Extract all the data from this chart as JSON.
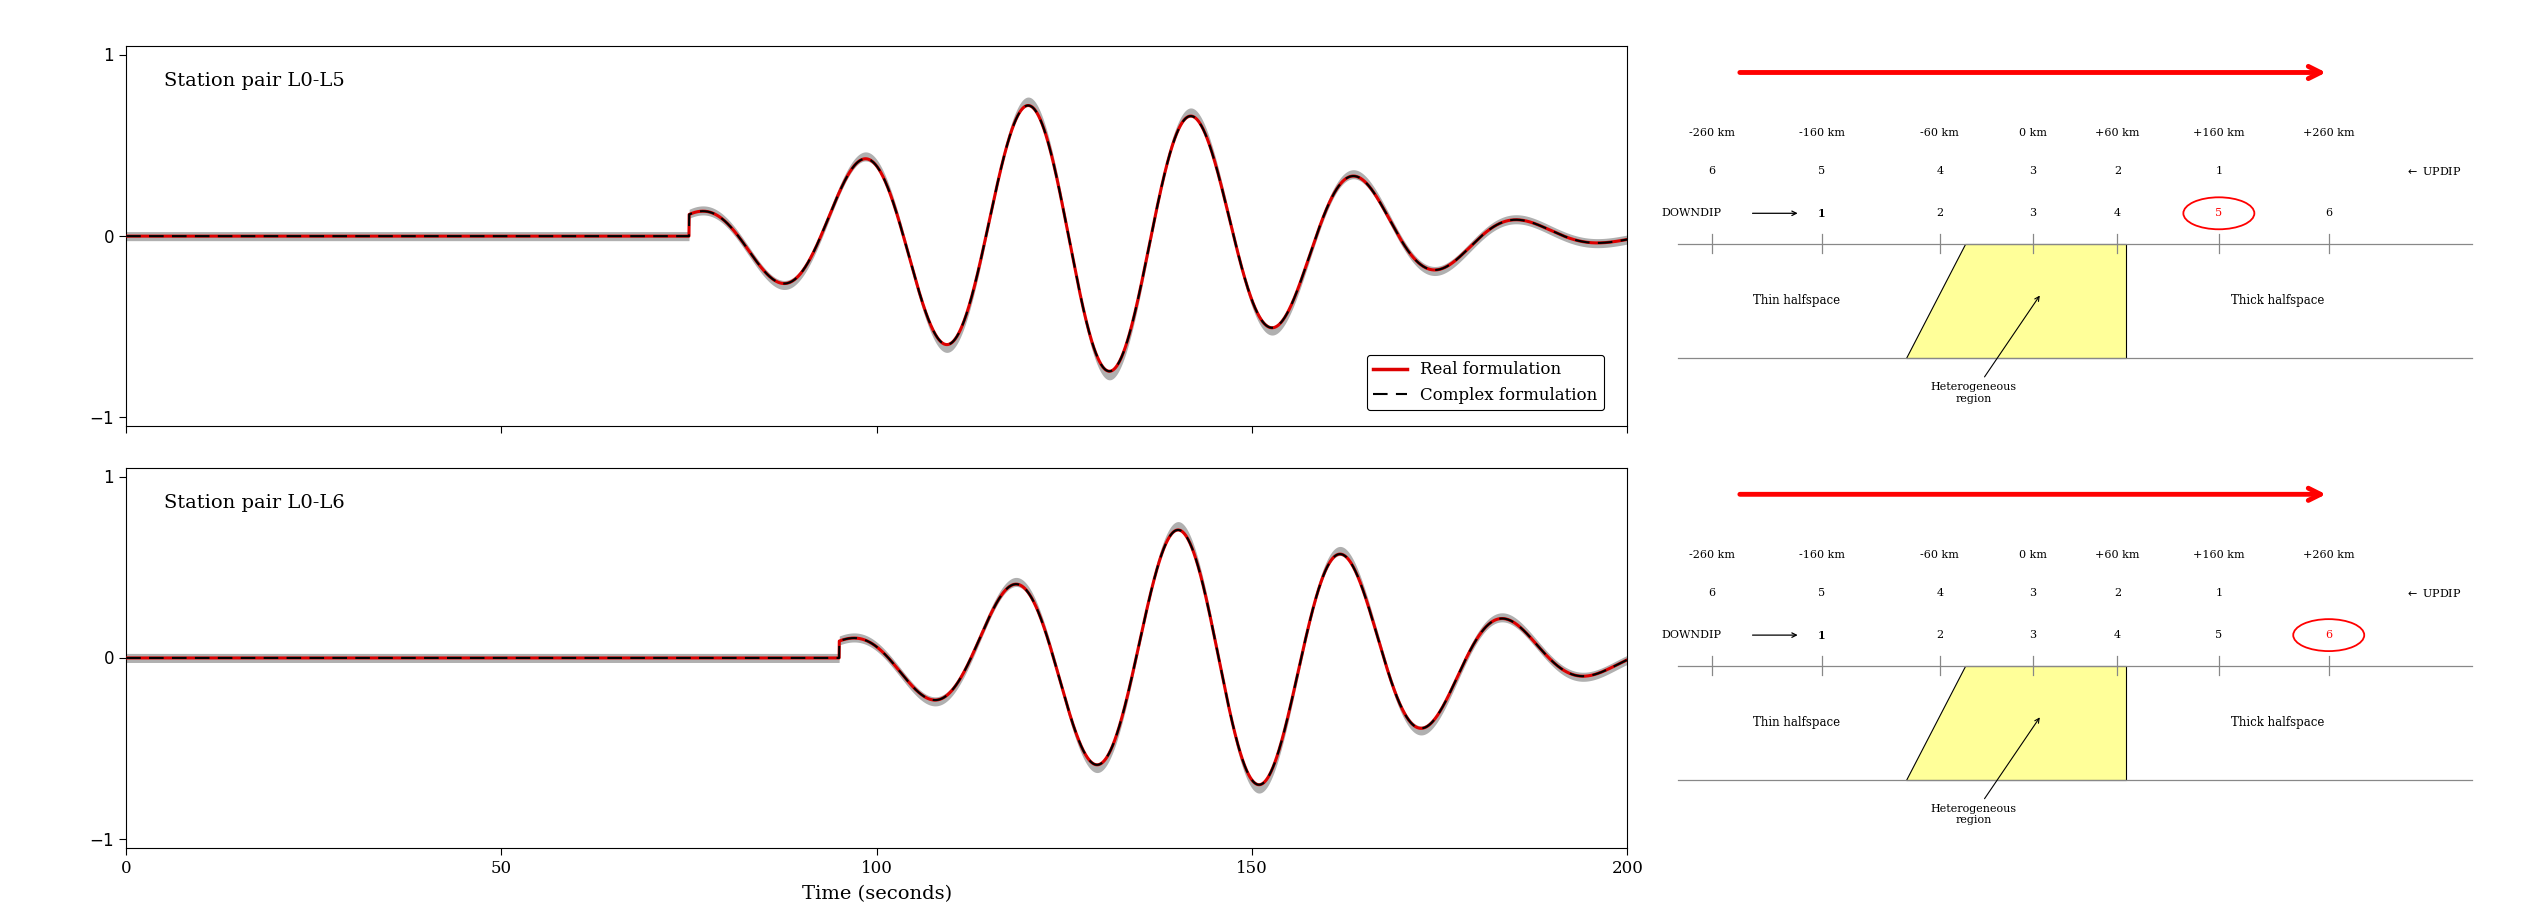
{
  "panel1_label": "Station pair L0-L5",
  "panel2_label": "Station pair L0-L6",
  "xlabel": "Time (seconds)",
  "xlim": [
    0,
    200
  ],
  "ylim": [
    -1.05,
    1.05
  ],
  "yticks": [
    -1,
    0,
    1
  ],
  "xticks": [
    0,
    50,
    100,
    150,
    200
  ],
  "legend_real": "Real formulation",
  "legend_complex": "Complex formulation",
  "waveform_color_real": "#dd0000",
  "waveform_color_shadow": "#aaaaaa",
  "bg_color": "#ffffff",
  "diagram_km_labels": [
    "-260 km",
    "-160 km",
    "-60 km",
    "0 km",
    "+60 km",
    "+160 km",
    "+260 km"
  ],
  "diagram_top_nums": [
    "6",
    "5",
    "4",
    "3",
    "2",
    "1"
  ],
  "diagram_bottom_nums": [
    "1",
    "2",
    "3",
    "4",
    "5",
    "6"
  ],
  "diagram_circled1": "5",
  "diagram_circled2": "6",
  "thin_halfspace": "Thin halfspace",
  "thick_halfspace": "Thick halfspace",
  "hetero_label": "Heterogeneous\nregion"
}
